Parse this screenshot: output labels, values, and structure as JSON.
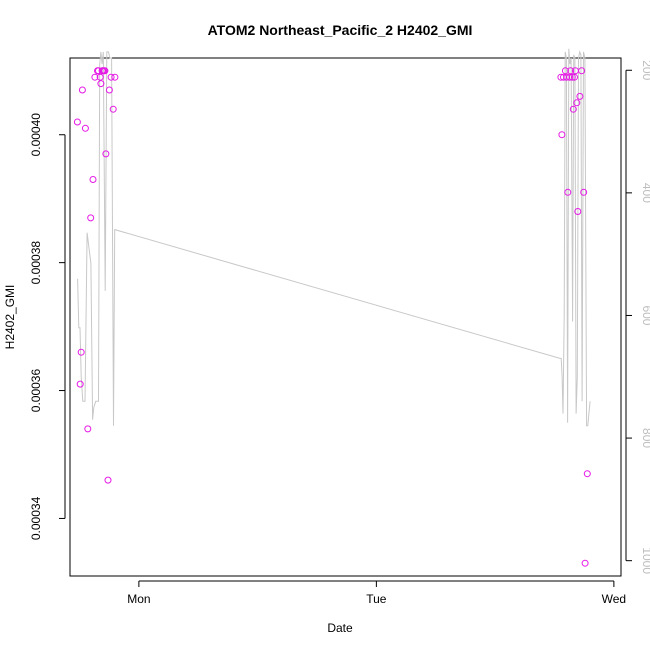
{
  "chart_data": {
    "type": "scatter",
    "title": "ATOM2 Northeast_Pacific_2 H2402_GMI",
    "xlabel": "Date",
    "ylabel": "H2402_GMI",
    "x_unit": "days (Mon = 1, Tue = 2, Wed = 3)",
    "xlim": [
      0.71,
      3.03
    ],
    "ylim": [
      0.000331,
      0.000412
    ],
    "y_ticks": [
      0.00034,
      0.00036,
      0.00038,
      0.0004
    ],
    "y_tick_labels": [
      "0.00034",
      "0.00036",
      "0.00038",
      "0.00040"
    ],
    "x_ticks": [
      1,
      2,
      3
    ],
    "x_tick_labels": [
      "Mon",
      "Tue",
      "Wed"
    ],
    "right_axis": {
      "ylim": [
        180,
        1025
      ],
      "ticks": [
        200,
        400,
        600,
        800,
        1000
      ],
      "tick_labels": [
        "200",
        "400",
        "600",
        "800",
        "1000"
      ],
      "color": "#bdbdbd"
    },
    "grid": false,
    "series": [
      {
        "kind": "points",
        "color": "#e619e6",
        "x": [
          0.741,
          0.753,
          0.757,
          0.762,
          0.775,
          0.785,
          0.797,
          0.807,
          0.815,
          0.826,
          0.83,
          0.837,
          0.84,
          0.845,
          0.849,
          0.853,
          0.857,
          0.861,
          0.87,
          0.876,
          0.883,
          0.892,
          0.899,
          2.777,
          2.781,
          2.788,
          2.796,
          2.801,
          2.806,
          2.814,
          2.818,
          2.825,
          2.829,
          2.834,
          2.838,
          2.844,
          2.848,
          2.857,
          2.864,
          2.873,
          2.879,
          2.888
        ],
        "y": [
          0.000402,
          0.000361,
          0.000366,
          0.000407,
          0.000401,
          0.000354,
          0.000387,
          0.000393,
          0.000409,
          0.00041,
          0.00041,
          0.000409,
          0.000408,
          0.00041,
          0.00041,
          0.00041,
          0.00041,
          0.000397,
          0.000346,
          0.000407,
          0.000409,
          0.000404,
          0.000409,
          0.000409,
          0.0004,
          0.000409,
          0.00041,
          0.000409,
          0.000391,
          0.000409,
          0.00041,
          0.000409,
          0.000404,
          0.000409,
          0.00041,
          0.000405,
          0.000388,
          0.000406,
          0.00041,
          0.000391,
          0.000333,
          0.000347
        ]
      },
      {
        "kind": "line",
        "color": "#c8c8c8",
        "x": [
          0.742,
          0.747,
          0.752,
          0.757,
          0.764,
          0.773,
          0.782,
          0.79,
          0.798,
          0.805,
          0.81,
          0.818,
          0.825,
          0.83,
          0.835,
          0.84,
          0.845,
          0.85,
          0.858,
          0.865,
          0.872,
          0.878,
          0.885,
          0.893,
          0.898,
          2.773,
          2.778,
          2.782,
          2.786,
          2.791,
          2.795,
          2.8,
          2.805,
          2.81,
          2.815,
          2.82,
          2.826,
          2.831,
          2.836,
          2.841,
          2.846,
          2.851,
          2.856,
          2.861,
          2.866,
          2.872,
          2.878,
          2.885,
          2.89,
          2.895,
          2.9
        ],
        "y": [
          540,
          620,
          620,
          700,
          740,
          740,
          465,
          490,
          515,
          770,
          750,
          740,
          740,
          740,
          190,
          170,
          190,
          170,
          560,
          170,
          170,
          180,
          180,
          780,
          460,
          670,
          670,
          700,
          760,
          600,
          170,
          180,
          775,
          165,
          190,
          180,
          610,
          175,
          180,
          760,
          700,
          180,
          170,
          175,
          740,
          170,
          180,
          780,
          780,
          760,
          740
        ]
      }
    ]
  }
}
